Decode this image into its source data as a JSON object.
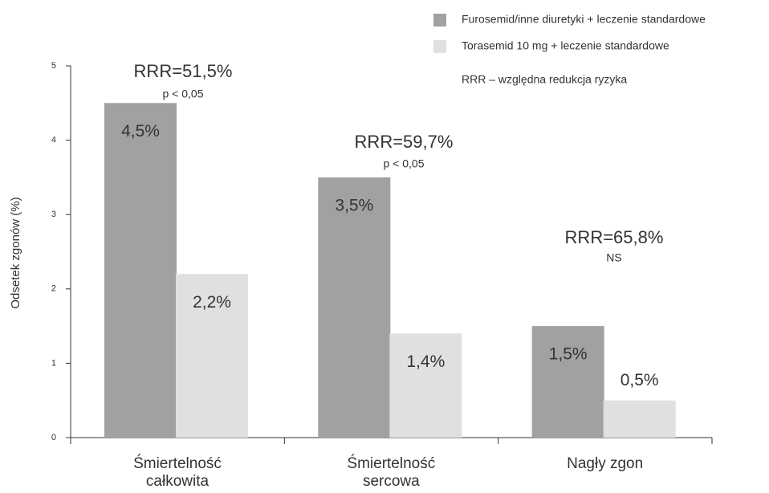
{
  "chart_data": {
    "type": "bar",
    "y_axis_label": "Odsetek zgonów (%)",
    "categories": [
      "Śmiertelność\ncałkowita",
      "Śmiertelność\nsercowa",
      "Nagły zgon"
    ],
    "series": [
      {
        "name": "Furosemid/inne diuretyki + leczenie  standardowe",
        "color": "#a1a1a3",
        "values": [
          4.5,
          3.5,
          1.5
        ],
        "value_labels": [
          "4,5%",
          "3,5%",
          "1,5%"
        ]
      },
      {
        "name": "Torasemid 10 mg + leczenie  standardowe",
        "color": "#e0e0e1",
        "values": [
          2.2,
          1.4,
          0.5
        ],
        "value_labels": [
          "2,2%",
          "1,4%",
          "0,5%"
        ]
      }
    ],
    "legend_note": "RRR – względna redukcja ryzyka",
    "annotations": [
      {
        "label": "RRR=51,5%",
        "significance": "p < 0,05"
      },
      {
        "label": "RRR=59,7%",
        "significance": "p < 0,05"
      },
      {
        "label": "RRR=65,8%",
        "significance": "NS"
      }
    ],
    "ylim": [
      0,
      5
    ],
    "yticks": [
      0,
      1,
      2,
      3,
      4,
      5
    ],
    "legend": "top-right"
  }
}
